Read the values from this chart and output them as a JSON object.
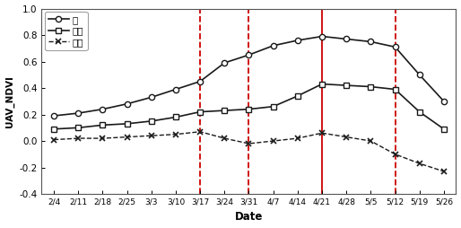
{
  "dates": [
    "2/4",
    "2/11",
    "2/18",
    "2/25",
    "3/3",
    "3/10",
    "3/17",
    "3/24",
    "3/31",
    "4/7",
    "4/14",
    "4/21",
    "4/28",
    "5/5",
    "5/12",
    "5/19",
    "5/26"
  ],
  "mil": [
    0.19,
    0.21,
    0.24,
    0.28,
    0.33,
    0.39,
    0.45,
    0.59,
    0.65,
    0.72,
    0.76,
    0.79,
    0.77,
    0.75,
    0.71,
    0.5,
    0.3
  ],
  "bori": [
    0.09,
    0.1,
    0.12,
    0.13,
    0.15,
    0.18,
    0.22,
    0.23,
    0.24,
    0.26,
    0.34,
    0.43,
    0.42,
    0.41,
    0.39,
    0.22,
    0.09
  ],
  "naji": [
    0.01,
    0.02,
    0.02,
    0.03,
    0.04,
    0.05,
    0.07,
    0.02,
    -0.02,
    0.0,
    0.02,
    0.06,
    0.03,
    0.0,
    -0.1,
    -0.17,
    -0.23
  ],
  "vline_dashed": [
    "3/17",
    "3/31",
    "5/12"
  ],
  "vline_solid": [
    "4/21"
  ],
  "ylabel": "UAV_NDVI",
  "xlabel": "Date",
  "ylim": [
    -0.4,
    1.0
  ],
  "yticks": [
    -0.4,
    -0.2,
    0.0,
    0.2,
    0.4,
    0.6,
    0.8,
    1.0
  ],
  "legend_labels": [
    "밀",
    "보리",
    "나지"
  ],
  "background_color": "#ffffff",
  "line_color": "#1a1a1a",
  "vline_dashed_color": "#cc0000",
  "vline_solid_color": "#cc0000"
}
